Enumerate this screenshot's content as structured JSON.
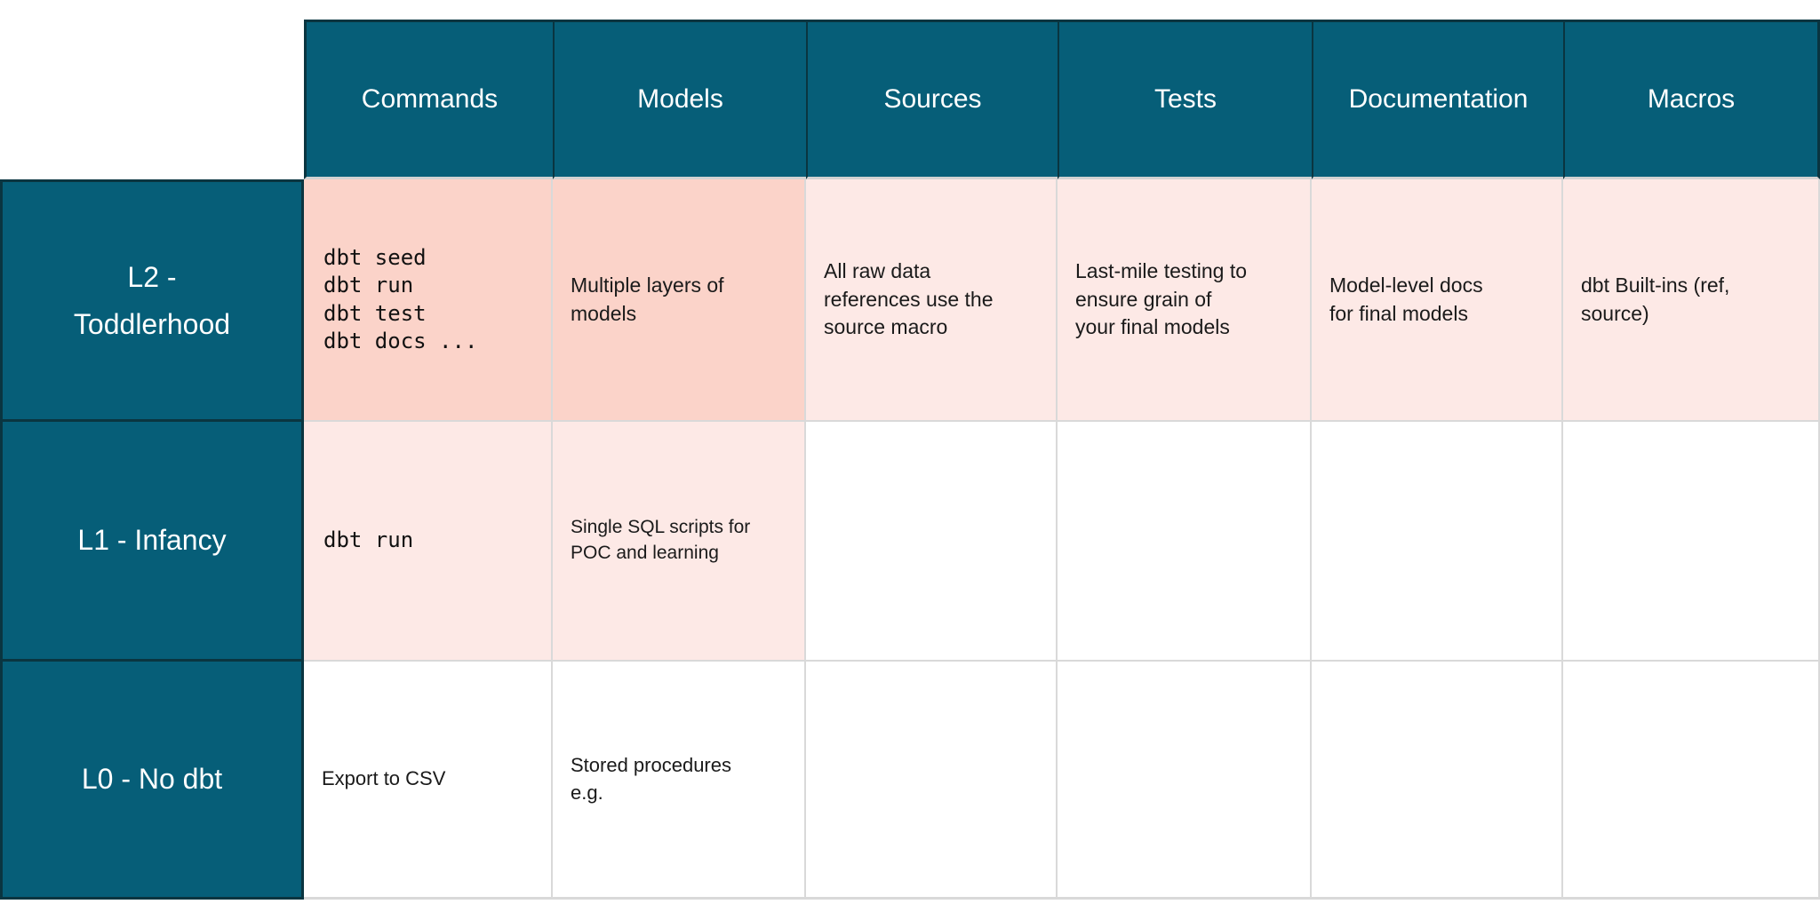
{
  "colors": {
    "header_teal": "#065E78",
    "dark_border": "#0A3540",
    "salmon_cell": "#FBD3C9",
    "blush_cell": "#FDE9E6",
    "grid_line": "#D9D9D9",
    "header_text": "#FFFFFF",
    "body_text": "#1A1A1A"
  },
  "table": {
    "column_headers": [
      "Commands",
      "Models",
      "Sources",
      "Tests",
      "Documentation",
      "Macros"
    ],
    "rows": [
      {
        "label": "L2 -\nToddlerhood",
        "cells": [
          {
            "text": "dbt seed\ndbt run\ndbt test\ndbt docs ..."
          },
          {
            "text": "Multiple layers of\nmodels"
          },
          {
            "text": "All raw data\nreferences use the\nsource macro"
          },
          {
            "text": "Last-mile testing to\nensure grain of\nyour final models"
          },
          {
            "text": "Model-level docs\nfor final models"
          },
          {
            "text": "dbt Built-ins (ref,\nsource)"
          }
        ]
      },
      {
        "label": "L1 - Infancy",
        "cells": [
          {
            "text": "dbt run"
          },
          {
            "text": "Single SQL scripts for\nPOC and learning"
          },
          {
            "text": ""
          },
          {
            "text": ""
          },
          {
            "text": ""
          },
          {
            "text": ""
          }
        ]
      },
      {
        "label": "L0 - No dbt",
        "cells": [
          {
            "text": "Export to CSV"
          },
          {
            "text": "Stored procedures\ne.g."
          },
          {
            "text": ""
          },
          {
            "text": ""
          },
          {
            "text": ""
          },
          {
            "text": ""
          }
        ]
      }
    ]
  }
}
